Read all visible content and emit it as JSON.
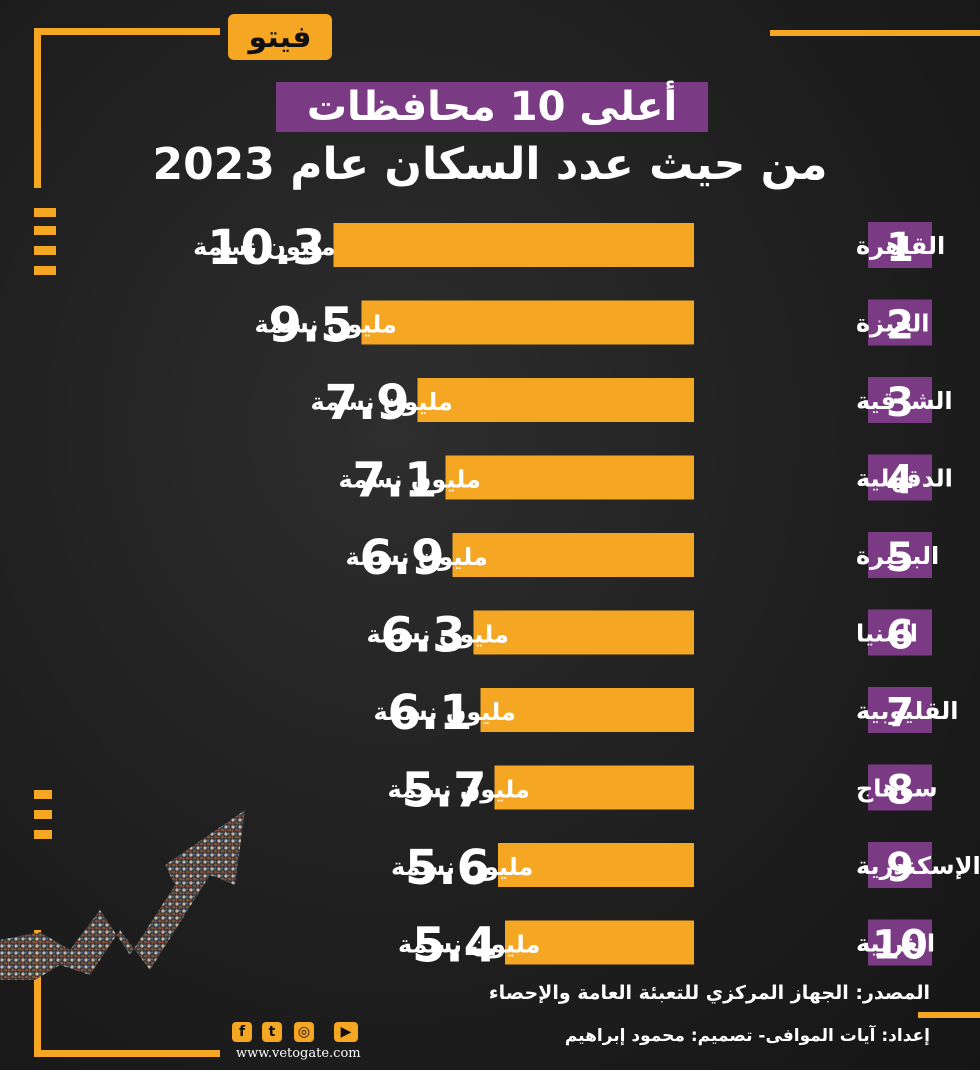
{
  "logo": {
    "text": "فيتو"
  },
  "header": {
    "title_line1": "أعلى 10 محافظات",
    "title_line2": "من حيث عدد السكان عام 2023"
  },
  "chart_data": {
    "type": "bar",
    "orientation": "horizontal",
    "ranks": [
      "1",
      "2",
      "3",
      "4",
      "5",
      "6",
      "7",
      "8",
      "9",
      "10"
    ],
    "categories": [
      "القاهرة",
      "الجيزة",
      "الشرقية",
      "الدقهلية",
      "البحيرة",
      "المنيا",
      "القليوبية",
      "سوهاج",
      "الإسكندرية",
      "الغربية"
    ],
    "values": [
      10.3,
      9.5,
      7.9,
      7.1,
      6.9,
      6.3,
      6.1,
      5.7,
      5.6,
      5.4
    ],
    "value_labels": [
      "10.3",
      "9.5",
      "7.9",
      "7.1",
      "6.9",
      "6.3",
      "6.1",
      "5.7",
      "5.6",
      "5.4"
    ],
    "unit": "مليون نسمة",
    "colors": {
      "bar": "#f5a623",
      "rank_box": "#7a3a84"
    }
  },
  "footer": {
    "source": "المصدر: الجهاز المركزي للتعبئة العامة والإحصاء",
    "credit": "إعداد: آيات الموافى- تصميم: محمود إبراهيم",
    "website": "www.vetogate.com",
    "social_icons": [
      "facebook-icon",
      "twitter-icon",
      "instagram-icon",
      "youtube-icon"
    ]
  }
}
